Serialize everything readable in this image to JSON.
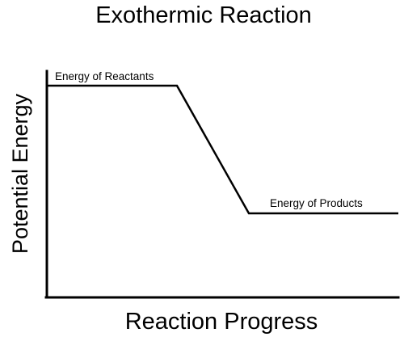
{
  "diagram": {
    "title": "Exothermic Reaction",
    "x_axis_label": "Reaction Progress",
    "y_axis_label": "Potential Energy",
    "reactants_label": "Energy of Reactants",
    "products_label": "Energy of Products",
    "line_color": "#000000",
    "background_color": "#ffffff"
  }
}
